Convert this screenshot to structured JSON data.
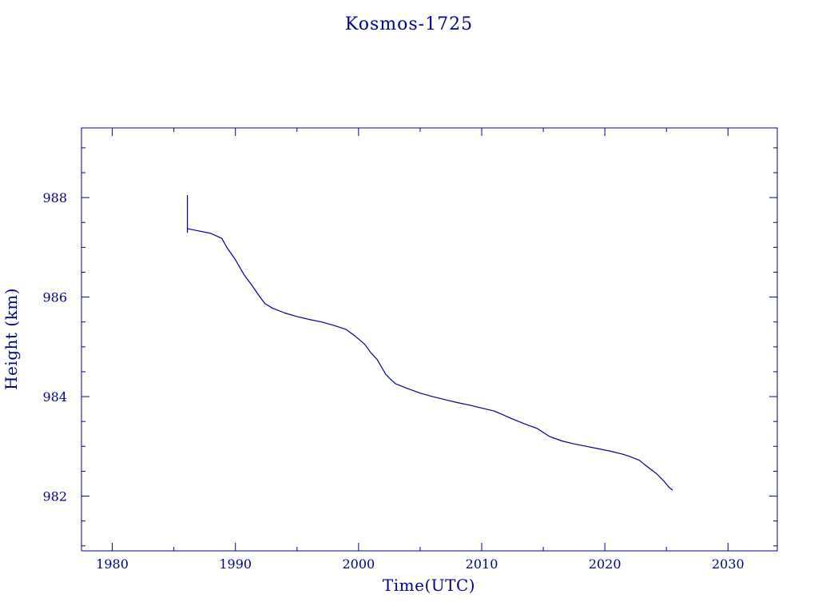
{
  "chart_data": {
    "type": "line",
    "title": "Kosmos-1725",
    "xlabel": "Time(UTC)",
    "ylabel": "Height (km)",
    "xlim": [
      1977.5,
      2034.0
    ],
    "ylim": [
      980.9,
      989.4
    ],
    "x_ticks": [
      1980,
      1990,
      2000,
      2010,
      2020,
      2030
    ],
    "x_tick_labels": [
      "1980",
      "1990",
      "2000",
      "2010",
      "2020",
      "2030"
    ],
    "y_ticks": [
      982,
      984,
      986,
      988
    ],
    "y_tick_labels": [
      "982",
      "984",
      "986",
      "988"
    ],
    "grid": false,
    "line_color": "#00008b",
    "series": [
      {
        "x": [
          1986.1,
          1986.1,
          1986.1,
          1986.2,
          1987.0,
          1988.0,
          1988.9,
          1989.3,
          1990.0,
          1990.7,
          1991.3,
          1992.0,
          1992.4,
          1993.0,
          1994.0,
          1995.0,
          1996.0,
          1997.0,
          1998.0,
          1999.0,
          1999.7,
          2000.5,
          2001.0,
          2001.5,
          2001.8,
          2002.2,
          2002.6,
          2003.0,
          2004.0,
          2005.0,
          2006.0,
          2007.0,
          2008.0,
          2009.0,
          2010.0,
          2011.0,
          2011.6,
          2012.5,
          2013.5,
          2014.5,
          2015.0,
          2015.5,
          2016.5,
          2017.5,
          2018.5,
          2019.5,
          2020.5,
          2021.5,
          2022.0,
          2022.8,
          2023.5,
          2024.2,
          2024.8,
          2025.2,
          2025.5
        ],
        "y": [
          988.05,
          987.3,
          987.37,
          987.37,
          987.33,
          987.28,
          987.18,
          987.0,
          986.75,
          986.45,
          986.25,
          986.0,
          985.87,
          985.78,
          985.68,
          985.61,
          985.55,
          985.5,
          985.43,
          985.35,
          985.22,
          985.05,
          984.88,
          984.75,
          984.62,
          984.45,
          984.35,
          984.26,
          984.16,
          984.07,
          984.0,
          983.94,
          983.88,
          983.83,
          983.77,
          983.71,
          983.65,
          983.55,
          983.45,
          983.36,
          983.28,
          983.2,
          983.11,
          983.05,
          983.0,
          982.95,
          982.9,
          982.84,
          982.8,
          982.72,
          982.58,
          982.45,
          982.3,
          982.18,
          982.12
        ]
      }
    ]
  }
}
